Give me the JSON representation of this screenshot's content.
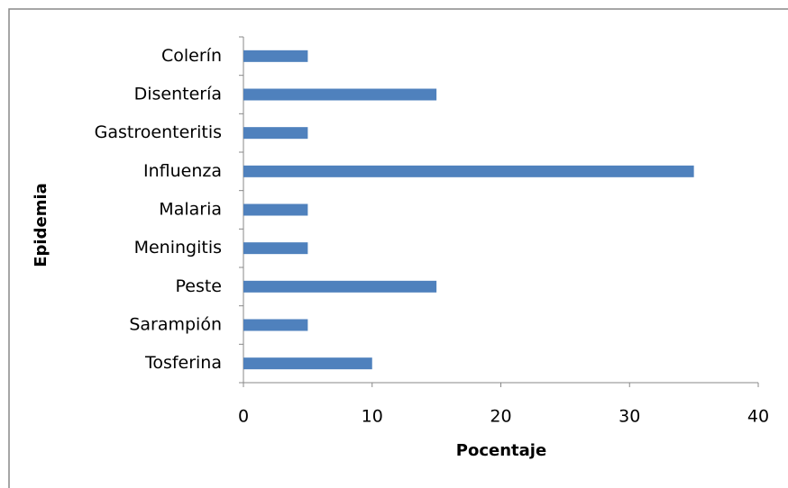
{
  "chart_data": {
    "type": "bar",
    "orientation": "horizontal",
    "categories": [
      "Colerín",
      "Disentería",
      "Gastroenteritis",
      "Influenza",
      "Malaria",
      "Meningitis",
      "Peste",
      "Sarampión",
      "Tosferina"
    ],
    "values": [
      5,
      15,
      5,
      35,
      5,
      5,
      15,
      5,
      10
    ],
    "color": "#4f81bd",
    "x_label": "Pocentaje",
    "y_label": "Epidemia",
    "xlim": [
      0,
      40
    ],
    "xticks": [
      0,
      10,
      20,
      30,
      40
    ],
    "grid": false
  }
}
